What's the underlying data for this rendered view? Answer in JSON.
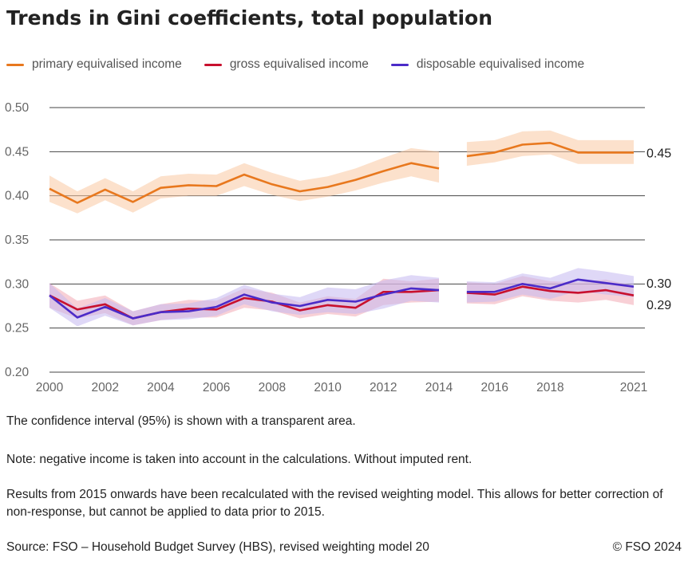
{
  "title": "Trends in Gini coefficients, total population",
  "legend": [
    {
      "label": "primary equivalised income",
      "color": "#e8781e"
    },
    {
      "label": "gross equivalised income",
      "color": "#c8102e"
    },
    {
      "label": "disposable equivalised income",
      "color": "#4b2bc8"
    }
  ],
  "notes": {
    "confidence": "The confidence interval (95%) is shown with a transparent area.",
    "note": "Note: negative income is taken into account in the calculations. Without imputed rent.",
    "results": "Results from 2015 onwards have been recalculated with the revised weighting model. This allows for better correction of non-response, but cannot be applied to data prior to 2015."
  },
  "source": "Source: FSO – Household Budget Survey (HBS), revised weighting model 20",
  "copyright": "© FSO 2024",
  "chart_data": {
    "type": "line",
    "title": "Trends in Gini coefficients, total population",
    "xlabel": "",
    "ylabel": "",
    "ylim": [
      0.2,
      0.5
    ],
    "yticks": [
      "0.20",
      "0.25",
      "0.30",
      "0.35",
      "0.40",
      "0.45",
      "0.50"
    ],
    "xticks": [
      "2000",
      "2002",
      "2004",
      "2006",
      "2008",
      "2010",
      "2012",
      "2014",
      "2016",
      "2018",
      "2021"
    ],
    "grid": "horizontal",
    "legend_position": "top",
    "break_between": [
      2014,
      2015
    ],
    "series": [
      {
        "name": "primary equivalised income",
        "color": "#e8781e",
        "band_color": "#f9c9a3",
        "end_label": "0.45",
        "x": [
          2000,
          2001,
          2002,
          2003,
          2004,
          2005,
          2006,
          2007,
          2008,
          2009,
          2010,
          2011,
          2012,
          2013,
          2014,
          2015,
          2016,
          2017,
          2018,
          2019,
          2020,
          2021
        ],
        "y": [
          0.408,
          0.392,
          0.407,
          0.393,
          0.409,
          0.412,
          0.411,
          0.424,
          0.413,
          0.405,
          0.41,
          0.418,
          0.428,
          0.437,
          0.431,
          0.445,
          0.449,
          0.458,
          0.46,
          0.449,
          0.449,
          0.449
        ],
        "lower": [
          0.393,
          0.38,
          0.395,
          0.381,
          0.397,
          0.4,
          0.4,
          0.411,
          0.401,
          0.394,
          0.399,
          0.406,
          0.415,
          0.422,
          0.415,
          0.434,
          0.438,
          0.445,
          0.447,
          0.436,
          0.436,
          0.436
        ],
        "upper": [
          0.423,
          0.405,
          0.42,
          0.405,
          0.422,
          0.425,
          0.424,
          0.437,
          0.426,
          0.417,
          0.422,
          0.431,
          0.443,
          0.454,
          0.45,
          0.461,
          0.463,
          0.473,
          0.474,
          0.463,
          0.463,
          0.463
        ]
      },
      {
        "name": "gross equivalised income",
        "color": "#c8102e",
        "band_color": "#f3a9b4",
        "end_label": "0.29",
        "x": [
          2000,
          2001,
          2002,
          2003,
          2004,
          2005,
          2006,
          2007,
          2008,
          2009,
          2010,
          2011,
          2012,
          2013,
          2014,
          2015,
          2016,
          2017,
          2018,
          2019,
          2020,
          2021
        ],
        "y": [
          0.287,
          0.271,
          0.277,
          0.261,
          0.268,
          0.272,
          0.271,
          0.284,
          0.28,
          0.27,
          0.276,
          0.273,
          0.291,
          0.291,
          0.293,
          0.29,
          0.288,
          0.297,
          0.292,
          0.29,
          0.293,
          0.287
        ],
        "lower": [
          0.273,
          0.261,
          0.267,
          0.253,
          0.259,
          0.262,
          0.262,
          0.273,
          0.27,
          0.261,
          0.266,
          0.263,
          0.276,
          0.279,
          0.28,
          0.278,
          0.277,
          0.286,
          0.281,
          0.279,
          0.282,
          0.276
        ],
        "upper": [
          0.301,
          0.281,
          0.287,
          0.269,
          0.277,
          0.282,
          0.281,
          0.295,
          0.29,
          0.279,
          0.286,
          0.283,
          0.306,
          0.303,
          0.306,
          0.302,
          0.3,
          0.309,
          0.303,
          0.302,
          0.305,
          0.298
        ]
      },
      {
        "name": "disposable equivalised income",
        "color": "#4b2bc8",
        "band_color": "#c5b8f0",
        "end_label": "0.30",
        "x": [
          2000,
          2001,
          2002,
          2003,
          2004,
          2005,
          2006,
          2007,
          2008,
          2009,
          2010,
          2011,
          2012,
          2013,
          2014,
          2015,
          2016,
          2017,
          2018,
          2019,
          2020,
          2021
        ],
        "y": [
          0.287,
          0.262,
          0.274,
          0.261,
          0.268,
          0.269,
          0.274,
          0.288,
          0.279,
          0.275,
          0.282,
          0.28,
          0.288,
          0.295,
          0.293,
          0.291,
          0.291,
          0.3,
          0.295,
          0.305,
          0.301,
          0.297
        ],
        "lower": [
          0.273,
          0.252,
          0.264,
          0.253,
          0.259,
          0.26,
          0.264,
          0.277,
          0.269,
          0.265,
          0.268,
          0.266,
          0.272,
          0.281,
          0.279,
          0.279,
          0.28,
          0.288,
          0.283,
          0.292,
          0.288,
          0.285
        ],
        "upper": [
          0.301,
          0.272,
          0.284,
          0.269,
          0.277,
          0.278,
          0.284,
          0.299,
          0.289,
          0.285,
          0.296,
          0.294,
          0.304,
          0.31,
          0.307,
          0.303,
          0.302,
          0.312,
          0.307,
          0.318,
          0.314,
          0.309
        ]
      }
    ]
  }
}
